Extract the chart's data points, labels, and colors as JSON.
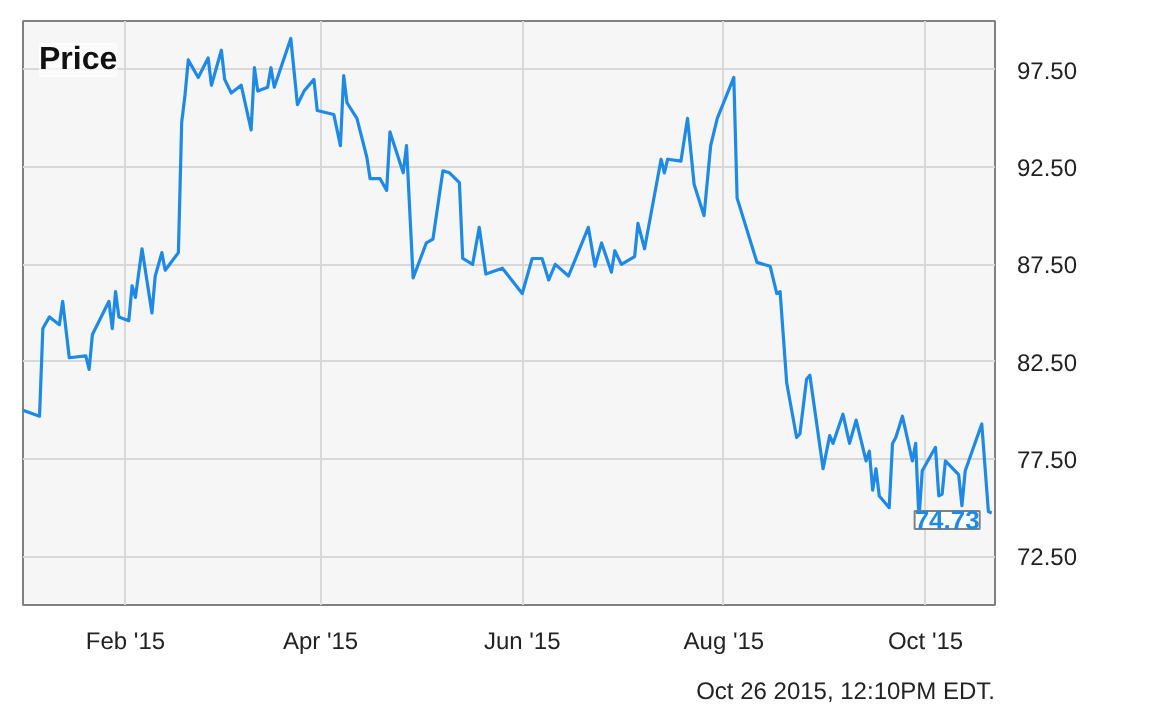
{
  "chart_data": {
    "type": "line",
    "title": "Price",
    "x": [
      "2015-01-01",
      "2015-01-06",
      "2015-01-07",
      "2015-01-09",
      "2015-01-12",
      "2015-01-13",
      "2015-01-15",
      "2015-01-20",
      "2015-01-21",
      "2015-01-22",
      "2015-01-27",
      "2015-01-28",
      "2015-01-29",
      "2015-01-30",
      "2015-02-02",
      "2015-02-03",
      "2015-02-04",
      "2015-02-06",
      "2015-02-09",
      "2015-02-10",
      "2015-02-12",
      "2015-02-13",
      "2015-02-17",
      "2015-02-18",
      "2015-02-19",
      "2015-02-20",
      "2015-02-23",
      "2015-02-26",
      "2015-02-27",
      "2015-03-02",
      "2015-03-03",
      "2015-03-05",
      "2015-03-08",
      "2015-03-11",
      "2015-03-12",
      "2015-03-13",
      "2015-03-16",
      "2015-03-17",
      "2015-03-18",
      "2015-03-23",
      "2015-03-25",
      "2015-03-27",
      "2015-03-30",
      "2015-03-31",
      "2015-04-05",
      "2015-04-07",
      "2015-04-08",
      "2015-04-09",
      "2015-04-12",
      "2015-04-15",
      "2015-04-16",
      "2015-04-19",
      "2015-04-21",
      "2015-04-22",
      "2015-04-26",
      "2015-04-27",
      "2015-04-29",
      "2015-05-03",
      "2015-05-05",
      "2015-05-08",
      "2015-05-10",
      "2015-05-13",
      "2015-05-14",
      "2015-05-17",
      "2015-05-19",
      "2015-05-21",
      "2015-05-26",
      "2015-06-01",
      "2015-06-04",
      "2015-06-07",
      "2015-06-09",
      "2015-06-11",
      "2015-06-15",
      "2015-06-21",
      "2015-06-23",
      "2015-06-25",
      "2015-06-28",
      "2015-06-29",
      "2015-07-01",
      "2015-07-05",
      "2015-07-06",
      "2015-07-08",
      "2015-07-13",
      "2015-07-14",
      "2015-07-15",
      "2015-07-19",
      "2015-07-21",
      "2015-07-23",
      "2015-07-26",
      "2015-07-28",
      "2015-07-30",
      "2015-08-04",
      "2015-08-05",
      "2015-08-11",
      "2015-08-15",
      "2015-08-17",
      "2015-08-18",
      "2015-08-20",
      "2015-08-23",
      "2015-08-24",
      "2015-08-26",
      "2015-08-27",
      "2015-08-31",
      "2015-09-02",
      "2015-09-03",
      "2015-09-06",
      "2015-09-08",
      "2015-09-10",
      "2015-09-13",
      "2015-09-14",
      "2015-09-15",
      "2015-09-16",
      "2015-09-17",
      "2015-09-20",
      "2015-09-21",
      "2015-09-22",
      "2015-09-24",
      "2015-09-27",
      "2015-09-28",
      "2015-09-29",
      "2015-09-30",
      "2015-10-04",
      "2015-10-05",
      "2015-10-06",
      "2015-10-07",
      "2015-10-11",
      "2015-10-12",
      "2015-10-13",
      "2015-10-18",
      "2015-10-20",
      "2015-10-21"
    ],
    "series": [
      {
        "color": "#1e8ae6",
        "values": [
          80.0,
          79.7,
          84.2,
          84.8,
          84.4,
          85.6,
          82.7,
          82.8,
          82.1,
          83.9,
          85.6,
          84.2,
          86.1,
          84.8,
          84.6,
          86.4,
          85.8,
          88.3,
          85.0,
          86.9,
          88.1,
          87.2,
          88.1,
          94.8,
          96.2,
          98.0,
          97.1,
          98.1,
          96.7,
          98.5,
          97.0,
          96.3,
          96.7,
          94.4,
          97.6,
          96.4,
          96.6,
          97.6,
          96.6,
          99.1,
          95.7,
          96.4,
          97.0,
          95.4,
          95.2,
          93.6,
          97.2,
          95.8,
          95.0,
          93.0,
          91.9,
          91.9,
          91.3,
          94.3,
          92.2,
          93.6,
          86.8,
          88.6,
          88.8,
          92.3,
          92.2,
          91.7,
          87.8,
          87.5,
          89.4,
          87.0,
          87.3,
          86.0,
          87.8,
          87.8,
          86.7,
          87.5,
          86.9,
          89.4,
          87.4,
          88.6,
          87.1,
          88.2,
          87.5,
          87.9,
          89.6,
          88.3,
          92.9,
          92.2,
          92.9,
          92.8,
          95.0,
          91.6,
          90.0,
          93.6,
          95.0,
          97.1,
          90.9,
          87.6,
          87.4,
          86.0,
          86.1,
          81.4,
          78.6,
          78.8,
          81.6,
          81.8,
          77.0,
          78.7,
          78.3,
          79.8,
          78.3,
          79.5,
          77.4,
          77.9,
          75.9,
          77.0,
          75.6,
          75.0,
          78.3,
          78.6,
          79.7,
          77.4,
          78.3,
          74.4,
          76.9,
          78.1,
          75.6,
          75.7,
          77.4,
          76.7,
          75.1,
          76.9,
          79.3,
          74.8,
          74.73
        ]
      }
    ],
    "xlim": [
      "2015-01-01",
      "2015-10-22"
    ],
    "xticks": [
      {
        "value": "2015-02-01",
        "label": "Feb '15"
      },
      {
        "value": "2015-04-01",
        "label": "Apr '15"
      },
      {
        "value": "2015-06-01",
        "label": "Jun '15"
      },
      {
        "value": "2015-08-01",
        "label": "Aug '15"
      },
      {
        "value": "2015-10-01",
        "label": "Oct '15"
      }
    ],
    "ylim": [
      70,
      100
    ],
    "yticks": [
      {
        "value": 72.5,
        "label": "72.50"
      },
      {
        "value": 77.5,
        "label": "77.50"
      },
      {
        "value": 82.5,
        "label": "82.50"
      },
      {
        "value": 87.5,
        "label": "87.50"
      },
      {
        "value": 92.5,
        "label": "92.50"
      },
      {
        "value": 97.5,
        "label": "97.50"
      }
    ],
    "grid": true,
    "annotations": [
      {
        "text": "74.73",
        "x": "2015-10-21",
        "y": 74.73
      },
      "Oct 26 2015, 12:10PM EDT."
    ]
  }
}
